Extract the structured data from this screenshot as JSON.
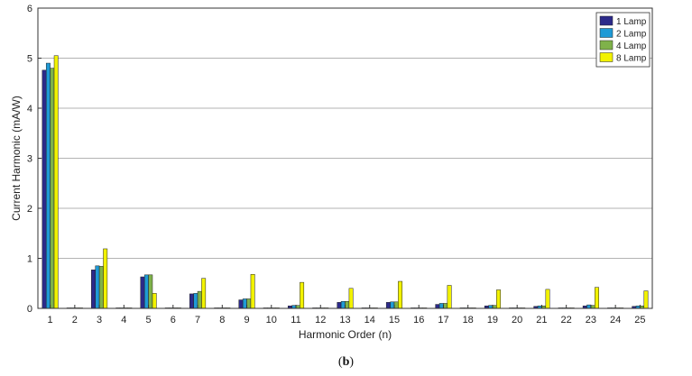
{
  "caption": {
    "open": "(",
    "label": "b",
    "close": ")"
  },
  "chart_data": {
    "type": "bar",
    "xlabel": "Harmonic Order (n)",
    "ylabel": "Current Harmonic (mA/W)",
    "ylim": [
      0,
      6
    ],
    "yticks": [
      0,
      1,
      2,
      3,
      4,
      5,
      6
    ],
    "grid": "horizontal",
    "legend_position": "top-right",
    "categories": [
      "1",
      "2",
      "3",
      "4",
      "5",
      "6",
      "7",
      "8",
      "9",
      "10",
      "11",
      "12",
      "13",
      "14",
      "15",
      "16",
      "17",
      "18",
      "19",
      "20",
      "21",
      "22",
      "23",
      "24",
      "25"
    ],
    "series": [
      {
        "name": "1 Lamp",
        "color": "#2c2a8a",
        "values": [
          4.76,
          0.01,
          0.77,
          0.01,
          0.63,
          0.01,
          0.29,
          0.01,
          0.17,
          0.01,
          0.05,
          0.01,
          0.12,
          0.01,
          0.12,
          0.01,
          0.08,
          0.01,
          0.05,
          0.01,
          0.04,
          0.01,
          0.05,
          0.01,
          0.04
        ]
      },
      {
        "name": "2 Lamp",
        "color": "#1f9ad6",
        "values": [
          4.9,
          0.01,
          0.85,
          0.01,
          0.67,
          0.01,
          0.3,
          0.01,
          0.19,
          0.01,
          0.06,
          0.01,
          0.14,
          0.01,
          0.13,
          0.01,
          0.1,
          0.01,
          0.06,
          0.01,
          0.05,
          0.01,
          0.07,
          0.01,
          0.05
        ]
      },
      {
        "name": "4 Lamp",
        "color": "#7fb24a",
        "values": [
          4.8,
          0.01,
          0.84,
          0.01,
          0.67,
          0.01,
          0.34,
          0.01,
          0.19,
          0.01,
          0.06,
          0.01,
          0.14,
          0.01,
          0.13,
          0.01,
          0.1,
          0.01,
          0.06,
          0.01,
          0.05,
          0.01,
          0.06,
          0.01,
          0.05
        ]
      },
      {
        "name": "8 Lamp",
        "color": "#f2f200",
        "values": [
          5.05,
          0.01,
          1.19,
          0.01,
          0.3,
          0.01,
          0.6,
          0.01,
          0.68,
          0.01,
          0.52,
          0.01,
          0.4,
          0.01,
          0.54,
          0.01,
          0.46,
          0.01,
          0.37,
          0.01,
          0.38,
          0.01,
          0.42,
          0.01,
          0.35
        ]
      }
    ]
  }
}
